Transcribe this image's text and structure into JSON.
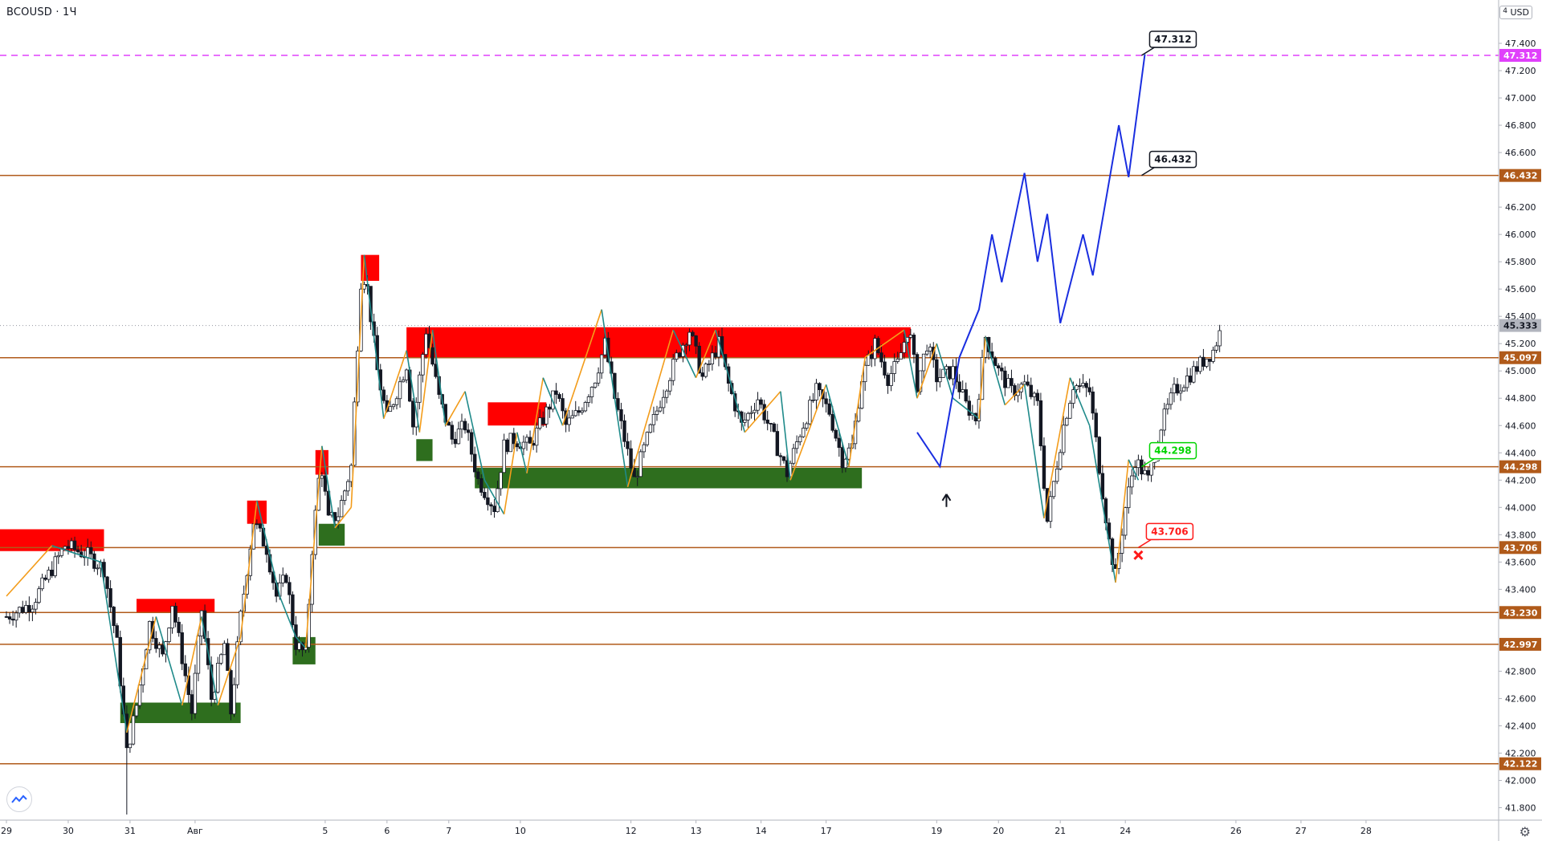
{
  "header": {
    "symbol": "BCOUSD",
    "interval": "1Ч",
    "currency_badge_num": "4",
    "currency_badge": "USD"
  },
  "colors": {
    "background": "#ffffff",
    "level_line": "#b05a1a",
    "level_tag": "#b05a1a",
    "target_line": "#e040fb",
    "resistance_zone": "#ff0000",
    "support_zone": "#2e6e1e",
    "forecast_path": "#1a2ee0",
    "zigzag_up": "#f39c1a",
    "zigzag_down": "#1f8a8a",
    "candle": "#131722",
    "last_price_tag": "#b2b5be",
    "callout_green": "#00d400",
    "callout_red": "#ff1a1a",
    "callout_black": "#131722"
  },
  "y_axis": {
    "labels": [
      "47.400",
      "47.200",
      "47.000",
      "46.800",
      "46.600",
      "46.200",
      "46.000",
      "45.800",
      "45.600",
      "45.400",
      "45.200",
      "45.000",
      "44.800",
      "44.600",
      "44.400",
      "44.200",
      "44.000",
      "43.800",
      "43.600",
      "43.400",
      "42.800",
      "42.600",
      "42.400",
      "42.200",
      "42.000",
      "41.800"
    ],
    "values": [
      47.4,
      47.2,
      47.0,
      46.8,
      46.6,
      46.2,
      46.0,
      45.8,
      45.6,
      45.4,
      45.2,
      45.0,
      44.8,
      44.6,
      44.4,
      44.2,
      44.0,
      43.8,
      43.6,
      43.4,
      42.8,
      42.6,
      42.4,
      42.2,
      42.0,
      41.8
    ],
    "range": [
      41.75,
      47.6
    ]
  },
  "x_axis": {
    "labels": [
      "29",
      "30",
      "31",
      "Авг",
      "5",
      "6",
      "7",
      "10",
      "12",
      "13",
      "14",
      "17",
      "19",
      "20",
      "21",
      "24",
      "26",
      "27",
      "28"
    ],
    "slots": [
      0,
      9.5,
      19,
      29,
      49,
      58.5,
      68,
      79,
      96,
      106,
      116,
      126,
      143,
      152.5,
      162,
      172,
      189,
      199,
      209
    ]
  },
  "levels": [
    {
      "label": "47.312",
      "value": 47.312,
      "style": "target"
    },
    {
      "label": "46.432",
      "value": 46.432,
      "style": "level"
    },
    {
      "label": "45.097",
      "value": 45.097,
      "style": "level"
    },
    {
      "label": "44.298",
      "value": 44.298,
      "style": "level"
    },
    {
      "label": "43.706",
      "value": 43.706,
      "style": "level"
    },
    {
      "label": "43.230",
      "value": 43.23,
      "style": "level"
    },
    {
      "label": "42.997",
      "value": 42.997,
      "style": "level"
    },
    {
      "label": "42.122",
      "value": 42.122,
      "style": "level"
    }
  ],
  "last_price": {
    "label": "45.333",
    "value": 45.333
  },
  "callouts": [
    {
      "label": "47.312",
      "value": 47.312,
      "slot": 174.5,
      "tone": "black"
    },
    {
      "label": "46.432",
      "value": 46.432,
      "slot": 174.5,
      "tone": "black"
    },
    {
      "label": "44.298",
      "value": 44.298,
      "slot": 174.5,
      "tone": "green"
    },
    {
      "label": "43.706",
      "value": 43.706,
      "slot": 174,
      "tone": "red"
    }
  ],
  "zones": [
    {
      "kind": "resistance",
      "x": [
        -2,
        15
      ],
      "y": [
        43.68,
        43.84
      ]
    },
    {
      "kind": "support",
      "x": [
        17.5,
        36
      ],
      "y": [
        42.42,
        42.57
      ]
    },
    {
      "kind": "resistance",
      "x": [
        20,
        32
      ],
      "y": [
        43.23,
        43.33
      ]
    },
    {
      "kind": "resistance",
      "x": [
        37,
        40
      ],
      "y": [
        43.88,
        44.05
      ]
    },
    {
      "kind": "support",
      "x": [
        44,
        47.5
      ],
      "y": [
        42.85,
        43.05
      ]
    },
    {
      "kind": "support",
      "x": [
        48,
        52
      ],
      "y": [
        43.72,
        43.88
      ]
    },
    {
      "kind": "resistance",
      "x": [
        47.5,
        49.5
      ],
      "y": [
        44.24,
        44.42
      ]
    },
    {
      "kind": "resistance",
      "x": [
        54.5,
        57.3
      ],
      "y": [
        45.66,
        45.85
      ]
    },
    {
      "kind": "support",
      "x": [
        63,
        65.5
      ],
      "y": [
        44.34,
        44.5
      ]
    },
    {
      "kind": "resistance",
      "x": [
        61.5,
        139
      ],
      "y": [
        45.1,
        45.32
      ]
    },
    {
      "kind": "resistance",
      "x": [
        74,
        83
      ],
      "y": [
        44.6,
        44.77
      ]
    },
    {
      "kind": "support",
      "x": [
        72,
        131.5
      ],
      "y": [
        44.14,
        44.29
      ]
    }
  ],
  "series": {
    "anchors": [
      [
        0,
        43.2
      ],
      [
        4,
        43.3
      ],
      [
        7,
        43.55
      ],
      [
        9,
        43.72
      ],
      [
        12.5,
        43.65
      ],
      [
        15,
        43.55
      ],
      [
        17,
        43.0
      ],
      [
        18.5,
        42.2
      ],
      [
        20,
        42.55
      ],
      [
        22,
        43.15
      ],
      [
        24,
        42.9
      ],
      [
        25.5,
        43.3
      ],
      [
        27,
        42.9
      ],
      [
        28.5,
        42.5
      ],
      [
        30,
        43.25
      ],
      [
        31.5,
        42.6
      ],
      [
        33.5,
        43.0
      ],
      [
        34.5,
        42.5
      ],
      [
        36,
        43.2
      ],
      [
        38,
        43.9
      ],
      [
        40,
        43.7
      ],
      [
        41.5,
        43.35
      ],
      [
        43,
        43.5
      ],
      [
        44.5,
        43.0
      ],
      [
        46,
        42.92
      ],
      [
        47,
        43.7
      ],
      [
        48.3,
        44.35
      ],
      [
        49.5,
        43.9
      ],
      [
        51,
        43.95
      ],
      [
        53,
        44.3
      ],
      [
        54.6,
        45.75
      ],
      [
        55.5,
        45.6
      ],
      [
        57,
        45.0
      ],
      [
        58.5,
        44.65
      ],
      [
        60,
        44.85
      ],
      [
        61.5,
        45.05
      ],
      [
        62.5,
        44.6
      ],
      [
        64.5,
        45.3
      ],
      [
        66.5,
        44.8
      ],
      [
        68.5,
        44.5
      ],
      [
        70.5,
        44.6
      ],
      [
        72.5,
        44.2
      ],
      [
        75,
        44.0
      ],
      [
        76.5,
        44.45
      ],
      [
        78,
        44.5
      ],
      [
        80.5,
        44.45
      ],
      [
        82,
        44.6
      ],
      [
        84.5,
        44.85
      ],
      [
        86,
        44.6
      ],
      [
        88,
        44.7
      ],
      [
        90.5,
        44.95
      ],
      [
        92,
        45.2
      ],
      [
        93.5,
        44.8
      ],
      [
        95,
        44.5
      ],
      [
        96.5,
        44.2
      ],
      [
        98.5,
        44.5
      ],
      [
        101,
        44.85
      ],
      [
        103,
        45.1
      ],
      [
        105,
        45.3
      ],
      [
        107,
        44.95
      ],
      [
        109.5,
        45.2
      ],
      [
        111,
        44.9
      ],
      [
        113,
        44.6
      ],
      [
        115.5,
        44.8
      ],
      [
        118,
        44.5
      ],
      [
        120,
        44.25
      ],
      [
        122,
        44.55
      ],
      [
        124.5,
        44.85
      ],
      [
        126.5,
        44.7
      ],
      [
        128.5,
        44.35
      ],
      [
        130,
        44.45
      ],
      [
        131.5,
        44.95
      ],
      [
        133.5,
        45.2
      ],
      [
        135.5,
        44.95
      ],
      [
        137,
        45.05
      ],
      [
        138.7,
        45.33
      ],
      [
        140,
        44.9
      ],
      [
        141.5,
        45.2
      ],
      [
        143,
        44.95
      ],
      [
        145.5,
        45.0
      ],
      [
        147.5,
        44.75
      ],
      [
        149,
        44.65
      ],
      [
        150.5,
        45.25
      ],
      [
        152.5,
        45.0
      ],
      [
        154.5,
        44.85
      ],
      [
        156.5,
        44.9
      ],
      [
        158.5,
        44.75
      ],
      [
        160,
        43.9
      ],
      [
        162.5,
        44.6
      ],
      [
        164,
        44.9
      ],
      [
        166.5,
        44.85
      ],
      [
        168,
        44.3
      ],
      [
        169.5,
        43.75
      ],
      [
        170.5,
        43.5
      ],
      [
        172,
        44.0
      ],
      [
        173.5,
        44.35
      ],
      [
        175.5,
        44.2
      ],
      [
        177.5,
        44.6
      ],
      [
        179.5,
        44.85
      ],
      [
        181.5,
        44.95
      ],
      [
        183.5,
        45.05
      ],
      [
        185.5,
        45.15
      ],
      [
        186.9,
        45.33
      ]
    ]
  },
  "zigzag": [
    [
      0,
      43.35
    ],
    [
      7,
      43.72
    ],
    [
      14.5,
      43.6
    ],
    [
      18.5,
      42.35
    ],
    [
      23,
      43.2
    ],
    [
      27,
      42.55
    ],
    [
      30,
      43.2
    ],
    [
      32.5,
      42.55
    ],
    [
      36,
      43.05
    ],
    [
      38.5,
      44.05
    ],
    [
      42,
      43.35
    ],
    [
      44.5,
      43.05
    ],
    [
      46,
      42.97
    ],
    [
      48.5,
      44.45
    ],
    [
      50.5,
      43.85
    ],
    [
      53,
      44.0
    ],
    [
      55,
      45.85
    ],
    [
      58,
      44.65
    ],
    [
      61.5,
      45.15
    ],
    [
      63.5,
      44.55
    ],
    [
      65.5,
      45.3
    ],
    [
      67.5,
      44.6
    ],
    [
      70.5,
      44.85
    ],
    [
      73.5,
      44.2
    ],
    [
      76.5,
      43.95
    ],
    [
      78.5,
      44.55
    ],
    [
      80,
      44.25
    ],
    [
      82.5,
      44.95
    ],
    [
      85.5,
      44.6
    ],
    [
      91.5,
      45.45
    ],
    [
      95.5,
      44.15
    ],
    [
      102.5,
      45.3
    ],
    [
      106,
      44.95
    ],
    [
      109,
      45.3
    ],
    [
      113.5,
      44.55
    ],
    [
      119,
      44.85
    ],
    [
      120.5,
      44.2
    ],
    [
      126,
      44.9
    ],
    [
      129.5,
      44.3
    ],
    [
      132,
      45.1
    ],
    [
      138,
      45.3
    ],
    [
      140,
      44.8
    ],
    [
      143,
      45.2
    ],
    [
      145.5,
      44.8
    ],
    [
      149.5,
      44.65
    ],
    [
      150.5,
      45.25
    ],
    [
      153.5,
      44.75
    ],
    [
      156.5,
      44.9
    ],
    [
      159.5,
      43.92
    ],
    [
      163.5,
      44.95
    ],
    [
      166.5,
      44.6
    ],
    [
      170.5,
      43.45
    ],
    [
      172.5,
      44.35
    ],
    [
      174,
      44.2
    ]
  ],
  "forecast": [
    [
      140,
      44.55
    ],
    [
      143.5,
      44.3
    ],
    [
      146.5,
      45.1
    ],
    [
      149.5,
      45.45
    ],
    [
      151.5,
      46.0
    ],
    [
      153,
      45.65
    ],
    [
      156.5,
      46.45
    ],
    [
      158.5,
      45.8
    ],
    [
      160,
      46.15
    ],
    [
      162,
      45.35
    ],
    [
      165.5,
      46.0
    ],
    [
      167,
      45.7
    ],
    [
      171,
      46.8
    ],
    [
      172.5,
      46.42
    ],
    [
      175,
      47.32
    ]
  ],
  "arrow_marker": {
    "slot": 144.5,
    "value": 44.05
  },
  "x_marker": {
    "slot": 174,
    "value": 43.65
  }
}
